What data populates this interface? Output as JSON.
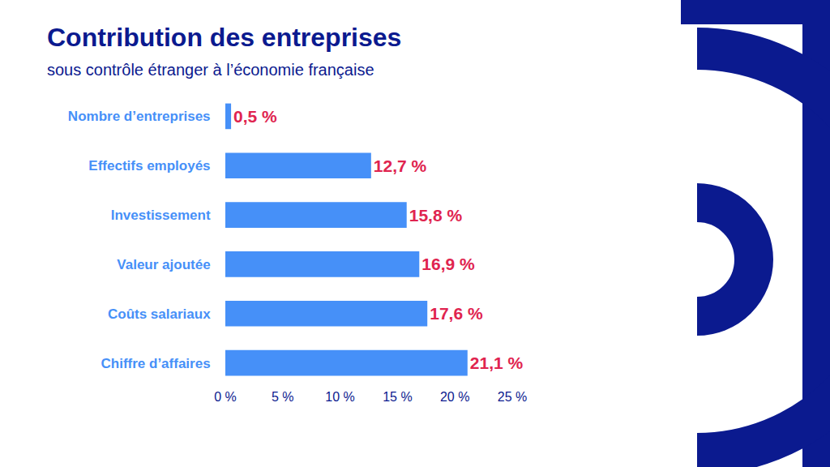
{
  "chart_data": {
    "type": "bar",
    "orientation": "horizontal",
    "title": "Contribution des entreprises",
    "subtitle": "sous contrôle étranger à l’économie française",
    "categories": [
      "Nombre d’entreprises",
      "Effectifs employés",
      "Investissement",
      "Valeur ajoutée",
      "Coûts salariaux",
      "Chiffre d’affaires"
    ],
    "values": [
      0.5,
      12.7,
      15.8,
      16.9,
      17.6,
      21.1
    ],
    "value_labels": [
      "0,5 %",
      "12,7 %",
      "15,8 %",
      "16,9 %",
      "17,6 %",
      "21,1 %"
    ],
    "color": "#4690f8",
    "xlim": [
      0,
      25
    ],
    "xticks": [
      {
        "value": 0,
        "label": "0 %"
      },
      {
        "value": 5,
        "label": "5 %"
      },
      {
        "value": 10,
        "label": "10 %"
      },
      {
        "value": 15,
        "label": "15 %"
      },
      {
        "value": 20,
        "label": "20 %"
      },
      {
        "value": 25,
        "label": "25 %"
      }
    ],
    "grid": false,
    "data_labels": true
  }
}
